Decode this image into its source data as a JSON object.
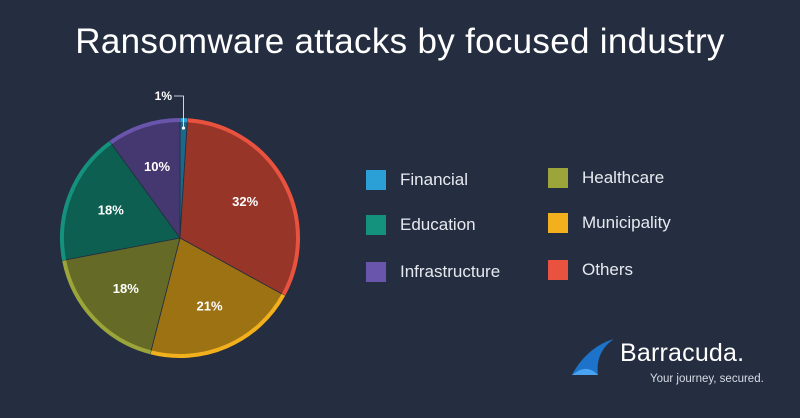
{
  "colors": {
    "background": "#252e40",
    "Financial": "#2aa0d6",
    "Education": "#14927e",
    "Infrastructure": "#6a55ad",
    "Healthcare": "#9ba53a",
    "Municipality": "#f2b01d",
    "Others": "#e8523e",
    "brand": "#1d73c9"
  },
  "chart_data": {
    "type": "pie",
    "title": "Ransomware attacks by focused industry",
    "slices": [
      {
        "name": "Financial",
        "value": 1,
        "label": "1%"
      },
      {
        "name": "Others",
        "value": 32,
        "label": "32%"
      },
      {
        "name": "Municipality",
        "value": 21,
        "label": "21%"
      },
      {
        "name": "Healthcare",
        "value": 18,
        "label": "18%"
      },
      {
        "name": "Education",
        "value": 18,
        "label": "18%"
      },
      {
        "name": "Infrastructure",
        "value": 10,
        "label": "10%"
      }
    ],
    "legend": [
      "Financial",
      "Education",
      "Infrastructure",
      "Healthcare",
      "Municipality",
      "Others"
    ],
    "legend_position": "right"
  },
  "brand": {
    "name": "Barracuda.",
    "tagline": "Your journey, secured.",
    "logo_icon": "barracuda-wave-icon"
  }
}
